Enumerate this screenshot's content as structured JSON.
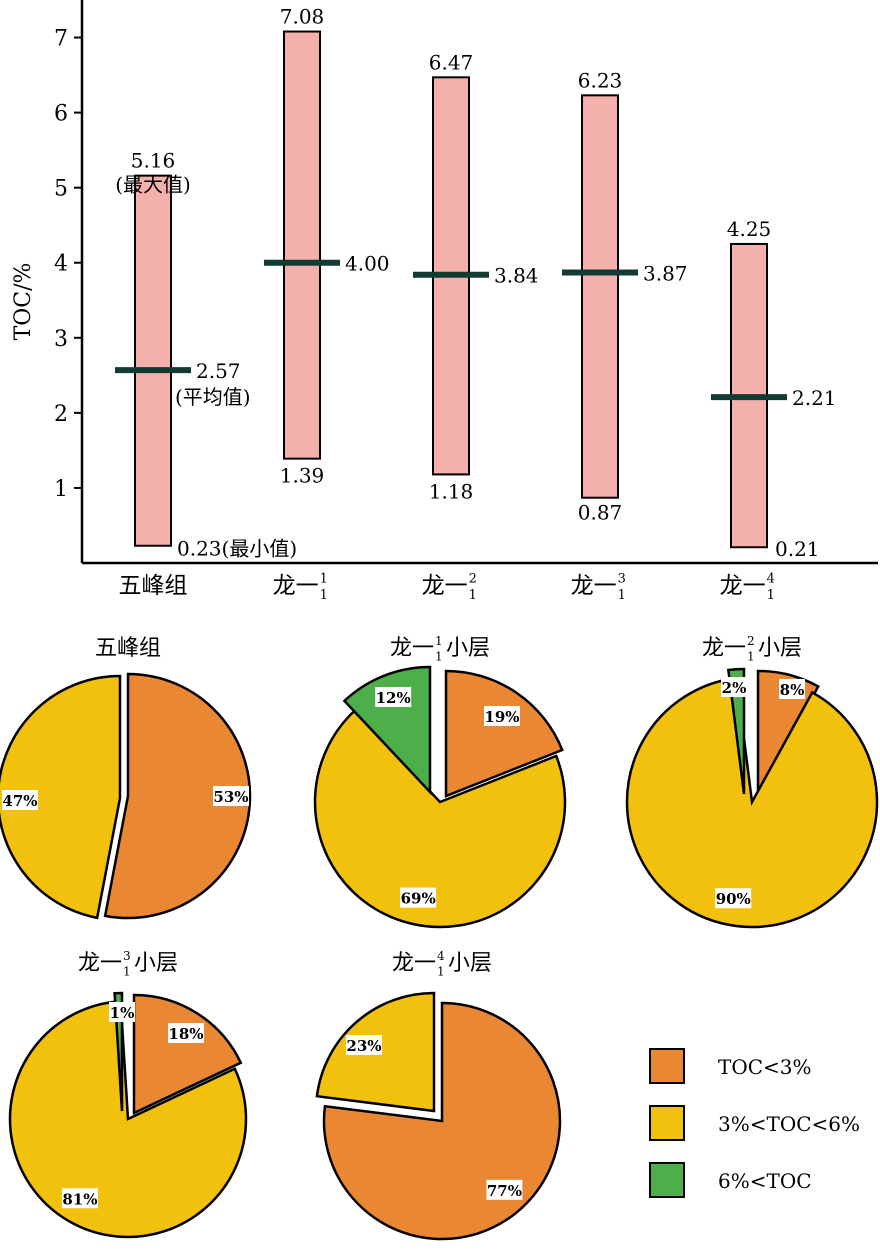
{
  "chart_data": [
    {
      "type": "bar",
      "ylabel": "TOC/%",
      "ylim": [
        0,
        7.5
      ],
      "yticks": [
        1,
        2,
        3,
        4,
        5,
        6,
        7
      ],
      "categories": [
        {
          "main": "五峰组",
          "sup": "",
          "sub": ""
        },
        {
          "main": "龙一",
          "sup": "1",
          "sub": "1"
        },
        {
          "main": "龙一",
          "sup": "2",
          "sub": "1"
        },
        {
          "main": "龙一",
          "sup": "3",
          "sub": "1"
        },
        {
          "main": "龙一",
          "sup": "4",
          "sub": "1"
        }
      ],
      "series": [
        {
          "name": "最大值",
          "values": [
            5.16,
            7.08,
            6.47,
            6.23,
            4.25
          ]
        },
        {
          "name": "最小值",
          "values": [
            0.23,
            1.39,
            1.18,
            0.87,
            0.21
          ]
        },
        {
          "name": "平均值",
          "values": [
            2.57,
            4.0,
            3.84,
            3.87,
            2.21
          ]
        }
      ],
      "max_labels": [
        "5.16",
        "7.08",
        "6.47",
        "6.23",
        "4.25"
      ],
      "min_labels": [
        "0.23(最小值)",
        "1.39",
        "1.18",
        "0.87",
        "0.21"
      ],
      "mean_labels": [
        "2.57",
        "4.00",
        "3.84",
        "3.87",
        "2.21"
      ],
      "max_note": "(最大值)",
      "mean_note": "(平均值)",
      "colors": {
        "bar_fill": "#f4b0aa",
        "bar_stroke": "#000000",
        "mean_line": "#123b33"
      }
    },
    {
      "type": "pie",
      "legend": [
        {
          "label": "TOC<3%",
          "color": "#e98733"
        },
        {
          "label": "3%<TOC<6%",
          "color": "#f2c10e"
        },
        {
          "label": "6%<TOC",
          "color": "#4daf4a"
        }
      ],
      "pies": [
        {
          "title": "五峰组",
          "title_main": "五峰组",
          "title_sup": "",
          "title_sub": "",
          "title_tail": "",
          "slices": [
            {
              "value": 53,
              "label": "53%"
            },
            {
              "value": 47,
              "label": "47%"
            },
            {
              "value": 0,
              "label": ""
            }
          ]
        },
        {
          "title": "龙一11小层",
          "title_main": "龙一",
          "title_sup": "1",
          "title_sub": "1",
          "title_tail": "小层",
          "slices": [
            {
              "value": 19,
              "label": "19%"
            },
            {
              "value": 69,
              "label": "69%"
            },
            {
              "value": 12,
              "label": "12%"
            }
          ]
        },
        {
          "title": "龙一12小层",
          "title_main": "龙一",
          "title_sup": "2",
          "title_sub": "1",
          "title_tail": "小层",
          "slices": [
            {
              "value": 8,
              "label": "8%"
            },
            {
              "value": 90,
              "label": "90%"
            },
            {
              "value": 2,
              "label": "2%"
            }
          ]
        },
        {
          "title": "龙一13小层",
          "title_main": "龙一",
          "title_sup": "3",
          "title_sub": "1",
          "title_tail": "小层",
          "slices": [
            {
              "value": 18,
              "label": "18%"
            },
            {
              "value": 81,
              "label": "81%"
            },
            {
              "value": 1,
              "label": "1%"
            }
          ]
        },
        {
          "title": "龙一14小层",
          "title_main": "龙一",
          "title_sup": "4",
          "title_sub": "1",
          "title_tail": "小层",
          "slices": [
            {
              "value": 77,
              "label": "77%"
            },
            {
              "value": 23,
              "label": "23%"
            },
            {
              "value": 0,
              "label": ""
            }
          ]
        }
      ]
    }
  ]
}
